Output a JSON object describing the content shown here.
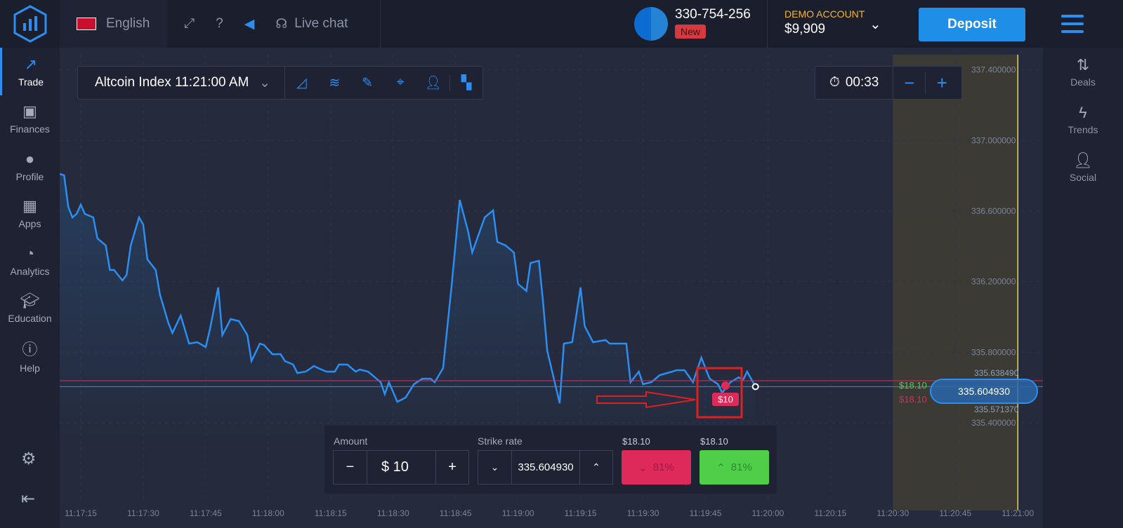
{
  "header": {
    "language": "English",
    "live_chat": "Live chat",
    "account_id": "330-754-256",
    "new_badge": "New",
    "account_type": "DEMO ACCOUNT",
    "balance": "$9,909",
    "deposit": "Deposit"
  },
  "sidebar": {
    "items": [
      {
        "label": "Trade",
        "icon": "chart-line-icon"
      },
      {
        "label": "Finances",
        "icon": "banknote-icon"
      },
      {
        "label": "Profile",
        "icon": "user-icon"
      },
      {
        "label": "Apps",
        "icon": "grid-icon"
      },
      {
        "label": "Analytics",
        "icon": "pie-chart-icon"
      },
      {
        "label": "Education",
        "icon": "graduation-cap-icon"
      },
      {
        "label": "Help",
        "icon": "info-icon"
      }
    ]
  },
  "right_sidebar": {
    "items": [
      {
        "label": "Deals"
      },
      {
        "label": "Trends"
      },
      {
        "label": "Social"
      }
    ]
  },
  "toolbar": {
    "asset": "Altcoin Index 11:21:00 AM"
  },
  "timer": {
    "value": "00:33"
  },
  "trade_panel": {
    "amount_label": "Amount",
    "amount": "$ 10",
    "strike_label": "Strike rate",
    "strike": "335.604930",
    "put_payout": "$18.10",
    "call_payout": "$18.10",
    "put_percent": "81%",
    "call_percent": "81%"
  },
  "colors": {
    "accent": "#2b8ef0",
    "put": "#dd2a5a",
    "call": "#4fce4a",
    "expiry": "#f5d431"
  },
  "chart_data": {
    "type": "line",
    "y_ticks": [
      "335.400000",
      "335.800000",
      "336.200000",
      "336.600000",
      "337.000000",
      "337.400000"
    ],
    "x_ticks": [
      "11:17:15",
      "11:17:30",
      "11:17:45",
      "11:18:00",
      "11:18:15",
      "11:18:30",
      "11:18:45",
      "11:19:00",
      "11:19:15",
      "11:19:30",
      "11:19:45",
      "11:20:00",
      "11:20:15",
      "11:20:30",
      "11:20:45",
      "11:21:00"
    ],
    "ylim": [
      335.3,
      337.45
    ],
    "grid": true,
    "current_price": "335.604930",
    "upper_level": "335.638490",
    "lower_level": "335.571370",
    "upper_payout": "$18.10",
    "lower_payout": "$18.10",
    "trade_marker": "$10",
    "expiry_time": "11:21:00",
    "points": [
      [
        "11:17:10",
        336.81
      ],
      [
        "11:17:11",
        336.802
      ],
      [
        "11:17:12",
        336.624
      ],
      [
        "11:17:13",
        336.564
      ],
      [
        "11:17:14",
        336.584
      ],
      [
        "11:17:15",
        336.636
      ],
      [
        "11:17:16",
        336.584
      ],
      [
        "11:17:18",
        336.564
      ],
      [
        "11:17:19",
        336.445
      ],
      [
        "11:17:21",
        336.405
      ],
      [
        "11:17:22",
        336.266
      ],
      [
        "11:17:23",
        336.266
      ],
      [
        "11:17:25",
        336.207
      ],
      [
        "11:17:26",
        336.238
      ],
      [
        "11:17:27",
        336.405
      ],
      [
        "11:17:29",
        336.564
      ],
      [
        "11:17:30",
        336.524
      ],
      [
        "11:17:31",
        336.326
      ],
      [
        "11:17:33",
        336.266
      ],
      [
        "11:17:34",
        336.127
      ],
      [
        "11:17:36",
        335.968
      ],
      [
        "11:17:37",
        335.909
      ],
      [
        "11:17:39",
        336.008
      ],
      [
        "11:17:41",
        335.849
      ],
      [
        "11:17:43",
        335.857
      ],
      [
        "11:17:45",
        335.829
      ],
      [
        "11:17:46",
        335.928
      ],
      [
        "11:17:48",
        336.167
      ],
      [
        "11:17:49",
        335.897
      ],
      [
        "11:17:51",
        335.988
      ],
      [
        "11:17:53",
        335.976
      ],
      [
        "11:17:55",
        335.897
      ],
      [
        "11:17:56",
        335.75
      ],
      [
        "11:17:58",
        335.849
      ],
      [
        "11:17:59",
        335.841
      ],
      [
        "11:18:01",
        335.789
      ],
      [
        "11:18:03",
        335.789
      ],
      [
        "11:18:04",
        335.75
      ],
      [
        "11:18:06",
        335.73
      ],
      [
        "11:18:07",
        335.682
      ],
      [
        "11:18:09",
        335.69
      ],
      [
        "11:18:11",
        335.722
      ],
      [
        "11:18:12",
        335.71
      ],
      [
        "11:18:14",
        335.69
      ],
      [
        "11:18:16",
        335.69
      ],
      [
        "11:18:17",
        335.73
      ],
      [
        "11:18:19",
        335.73
      ],
      [
        "11:18:21",
        335.69
      ],
      [
        "11:18:22",
        335.702
      ],
      [
        "11:18:24",
        335.69
      ],
      [
        "11:18:27",
        335.63
      ],
      [
        "11:18:28",
        335.563
      ],
      [
        "11:18:29",
        335.63
      ],
      [
        "11:18:31",
        335.519
      ],
      [
        "11:18:33",
        335.543
      ],
      [
        "11:18:35",
        335.619
      ],
      [
        "11:18:37",
        335.65
      ],
      [
        "11:18:39",
        335.65
      ],
      [
        "11:18:40",
        335.63
      ],
      [
        "11:18:42",
        335.71
      ],
      [
        "11:18:44",
        336.167
      ],
      [
        "11:18:46",
        336.663
      ],
      [
        "11:18:48",
        336.485
      ],
      [
        "11:18:49",
        336.365
      ],
      [
        "11:18:52",
        336.564
      ],
      [
        "11:18:54",
        336.604
      ],
      [
        "11:18:55",
        336.425
      ],
      [
        "11:18:57",
        336.405
      ],
      [
        "11:18:59",
        336.365
      ],
      [
        "11:19:00",
        336.187
      ],
      [
        "11:19:02",
        336.147
      ],
      [
        "11:19:03",
        336.306
      ],
      [
        "11:19:05",
        336.318
      ],
      [
        "11:19:06",
        336.087
      ],
      [
        "11:19:07",
        335.809
      ],
      [
        "11:19:10",
        335.511
      ],
      [
        "11:19:11",
        335.849
      ],
      [
        "11:19:13",
        335.857
      ],
      [
        "11:19:15",
        336.167
      ],
      [
        "11:19:16",
        335.948
      ],
      [
        "11:19:18",
        335.857
      ],
      [
        "11:19:21",
        335.869
      ],
      [
        "11:19:22",
        335.849
      ],
      [
        "11:19:26",
        335.849
      ],
      [
        "11:19:27",
        335.63
      ],
      [
        "11:19:29",
        335.69
      ],
      [
        "11:19:30",
        335.619
      ],
      [
        "11:19:32",
        335.63
      ],
      [
        "11:19:34",
        335.67
      ],
      [
        "11:19:37",
        335.69
      ],
      [
        "11:19:38",
        335.698
      ],
      [
        "11:19:40",
        335.698
      ],
      [
        "11:19:42",
        335.63
      ],
      [
        "11:19:44",
        335.769
      ],
      [
        "11:19:46",
        335.65
      ],
      [
        "11:19:48",
        335.619
      ],
      [
        "11:19:49",
        335.571
      ],
      [
        "11:19:51",
        335.63
      ],
      [
        "11:19:53",
        335.658
      ],
      [
        "11:19:54",
        335.642
      ],
      [
        "11:19:55",
        335.69
      ],
      [
        "11:19:57",
        335.605
      ]
    ]
  }
}
